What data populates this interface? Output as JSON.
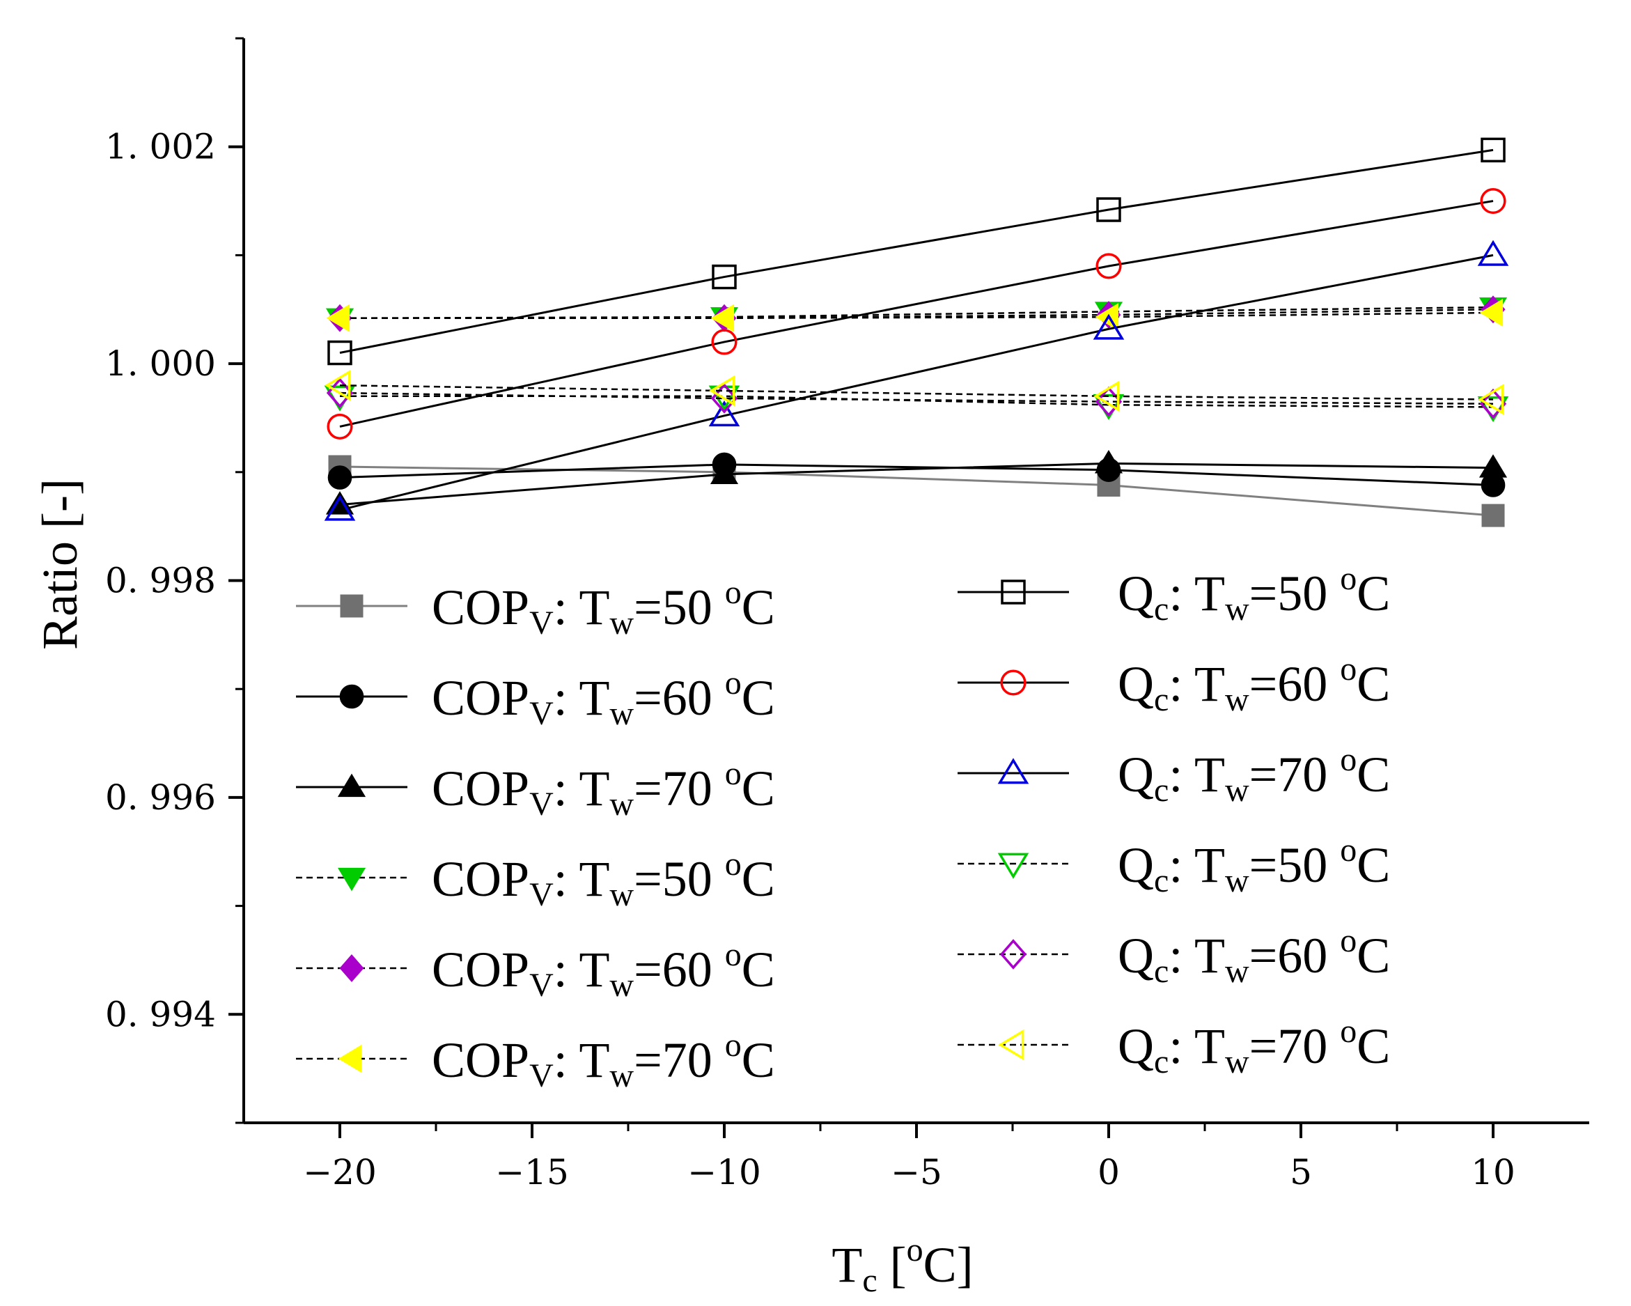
{
  "chart_data": {
    "type": "line",
    "title": "",
    "xlabel": {
      "main": "T",
      "sub": "c",
      "open": " [",
      "sup": "o",
      "unit": "C]"
    },
    "ylabel": "Ratio [-]",
    "xlim": [
      -22.5,
      12.5
    ],
    "ylim": [
      0.993,
      1.003
    ],
    "x_ticks": [
      -20,
      -15,
      -10,
      -5,
      0,
      5,
      10
    ],
    "x_tick_labels": [
      "−20",
      "−15",
      "−10",
      "−5",
      "0",
      "5",
      "10"
    ],
    "y_ticks": [
      0.994,
      0.996,
      0.998,
      1.0,
      1.002
    ],
    "y_tick_labels": [
      "0. 994",
      "0. 996",
      "0. 998",
      "1. 000",
      "1. 002"
    ],
    "x": [
      -20,
      -10,
      0,
      10
    ],
    "series": [
      {
        "name": "COPV: Tw=50 oC",
        "legend": {
          "main": "COP",
          "sub1": "V",
          "mid": ": T",
          "sub2": "w",
          "val": "=50 ",
          "sup": "o",
          "end": "C"
        },
        "values": [
          0.99905,
          0.999,
          0.99888,
          0.9986
        ],
        "marker": "square",
        "filled": true,
        "color": "#707070",
        "line_color": "#808080",
        "dashed": false
      },
      {
        "name": "COPV: Tw=60 oC",
        "legend": {
          "main": "COP",
          "sub1": "V",
          "mid": ": T",
          "sub2": "w",
          "val": "=60 ",
          "sup": "o",
          "end": "C"
        },
        "values": [
          0.99895,
          0.99907,
          0.99902,
          0.99888
        ],
        "marker": "circle",
        "filled": true,
        "color": "#000000",
        "line_color": "#000000",
        "dashed": false
      },
      {
        "name": "COPV: Tw=70 oC",
        "legend": {
          "main": "COP",
          "sub1": "V",
          "mid": ": T",
          "sub2": "w",
          "val": "=70 ",
          "sup": "o",
          "end": "C"
        },
        "values": [
          0.9987,
          0.99898,
          0.99908,
          0.99904
        ],
        "marker": "triangle-up",
        "filled": true,
        "color": "#000000",
        "line_color": "#000000",
        "dashed": false
      },
      {
        "name": "COPV: Tw=50 oC",
        "legend": {
          "main": "COP",
          "sub1": "V",
          "mid": ": T",
          "sub2": "w",
          "val": "=50 ",
          "sup": "o",
          "end": "C"
        },
        "values": [
          1.00042,
          1.00043,
          1.00048,
          1.00052
        ],
        "marker": "triangle-down",
        "filled": true,
        "color": "#00cc00",
        "line_color": "#000000",
        "dashed": true
      },
      {
        "name": "COPV: Tw=60 oC",
        "legend": {
          "main": "COP",
          "sub1": "V",
          "mid": ": T",
          "sub2": "w",
          "val": "=60 ",
          "sup": "o",
          "end": "C"
        },
        "values": [
          1.00042,
          1.00042,
          1.00045,
          1.0005
        ],
        "marker": "diamond",
        "filled": true,
        "color": "#aa00cc",
        "line_color": "#000000",
        "dashed": true
      },
      {
        "name": "COPV: Tw=70 oC",
        "legend": {
          "main": "COP",
          "sub1": "V",
          "mid": ": T",
          "sub2": "w",
          "val": "=70 ",
          "sup": "o",
          "end": "C"
        },
        "values": [
          1.00042,
          1.00042,
          1.00043,
          1.00047
        ],
        "marker": "triangle-left",
        "filled": true,
        "color": "#ffff00",
        "line_color": "#000000",
        "dashed": true
      },
      {
        "name": "Qc: Tw=50 oC",
        "legend": {
          "main": "Q",
          "sub1": "c",
          "mid": ": T",
          "sub2": "w",
          "val": "=50 ",
          "sup": "o",
          "end": "C"
        },
        "values": [
          1.0001,
          1.0008,
          1.00142,
          1.00197
        ],
        "marker": "square",
        "filled": false,
        "color": "#000000",
        "line_color": "#000000",
        "dashed": false
      },
      {
        "name": "Qc: Tw=60 oC",
        "legend": {
          "main": "Q",
          "sub1": "c",
          "mid": ": T",
          "sub2": "w",
          "val": "=60 ",
          "sup": "o",
          "end": "C"
        },
        "values": [
          0.99942,
          1.0002,
          1.0009,
          1.0015
        ],
        "marker": "circle",
        "filled": false,
        "color": "#ff0000",
        "line_color": "#000000",
        "dashed": false
      },
      {
        "name": "Qc: Tw=70 oC",
        "legend": {
          "main": "Q",
          "sub1": "c",
          "mid": ": T",
          "sub2": "w",
          "val": "=70 ",
          "sup": "o",
          "end": "C"
        },
        "values": [
          0.99865,
          0.99952,
          1.00032,
          1.001
        ],
        "marker": "triangle-up",
        "filled": false,
        "color": "#0000dd",
        "line_color": "#000000",
        "dashed": false
      },
      {
        "name": "Qc: Tw=50 oC",
        "legend": {
          "main": "Q",
          "sub1": "c",
          "mid": ": T",
          "sub2": "w",
          "val": "=50 ",
          "sup": "o",
          "end": "C"
        },
        "values": [
          0.9997,
          0.9997,
          0.99962,
          0.9996
        ],
        "marker": "triangle-down",
        "filled": false,
        "color": "#00cc00",
        "line_color": "#000000",
        "dashed": true
      },
      {
        "name": "Qc: Tw=60 oC",
        "legend": {
          "main": "Q",
          "sub1": "c",
          "mid": ": T",
          "sub2": "w",
          "val": "=60 ",
          "sup": "o",
          "end": "C"
        },
        "values": [
          0.99973,
          0.99968,
          0.99965,
          0.99963
        ],
        "marker": "diamond",
        "filled": false,
        "color": "#aa00cc",
        "line_color": "#000000",
        "dashed": true
      },
      {
        "name": "Qc: Tw=70 oC",
        "legend": {
          "main": "Q",
          "sub1": "c",
          "mid": ": T",
          "sub2": "w",
          "val": "=70 ",
          "sup": "o",
          "end": "C"
        },
        "values": [
          0.9998,
          0.99975,
          0.9997,
          0.99967
        ],
        "marker": "triangle-left",
        "filled": false,
        "color": "#ffff00",
        "line_color": "#000000",
        "dashed": true
      }
    ],
    "legend_position": "inside, two columns (lower-left and center)",
    "grid": false
  }
}
